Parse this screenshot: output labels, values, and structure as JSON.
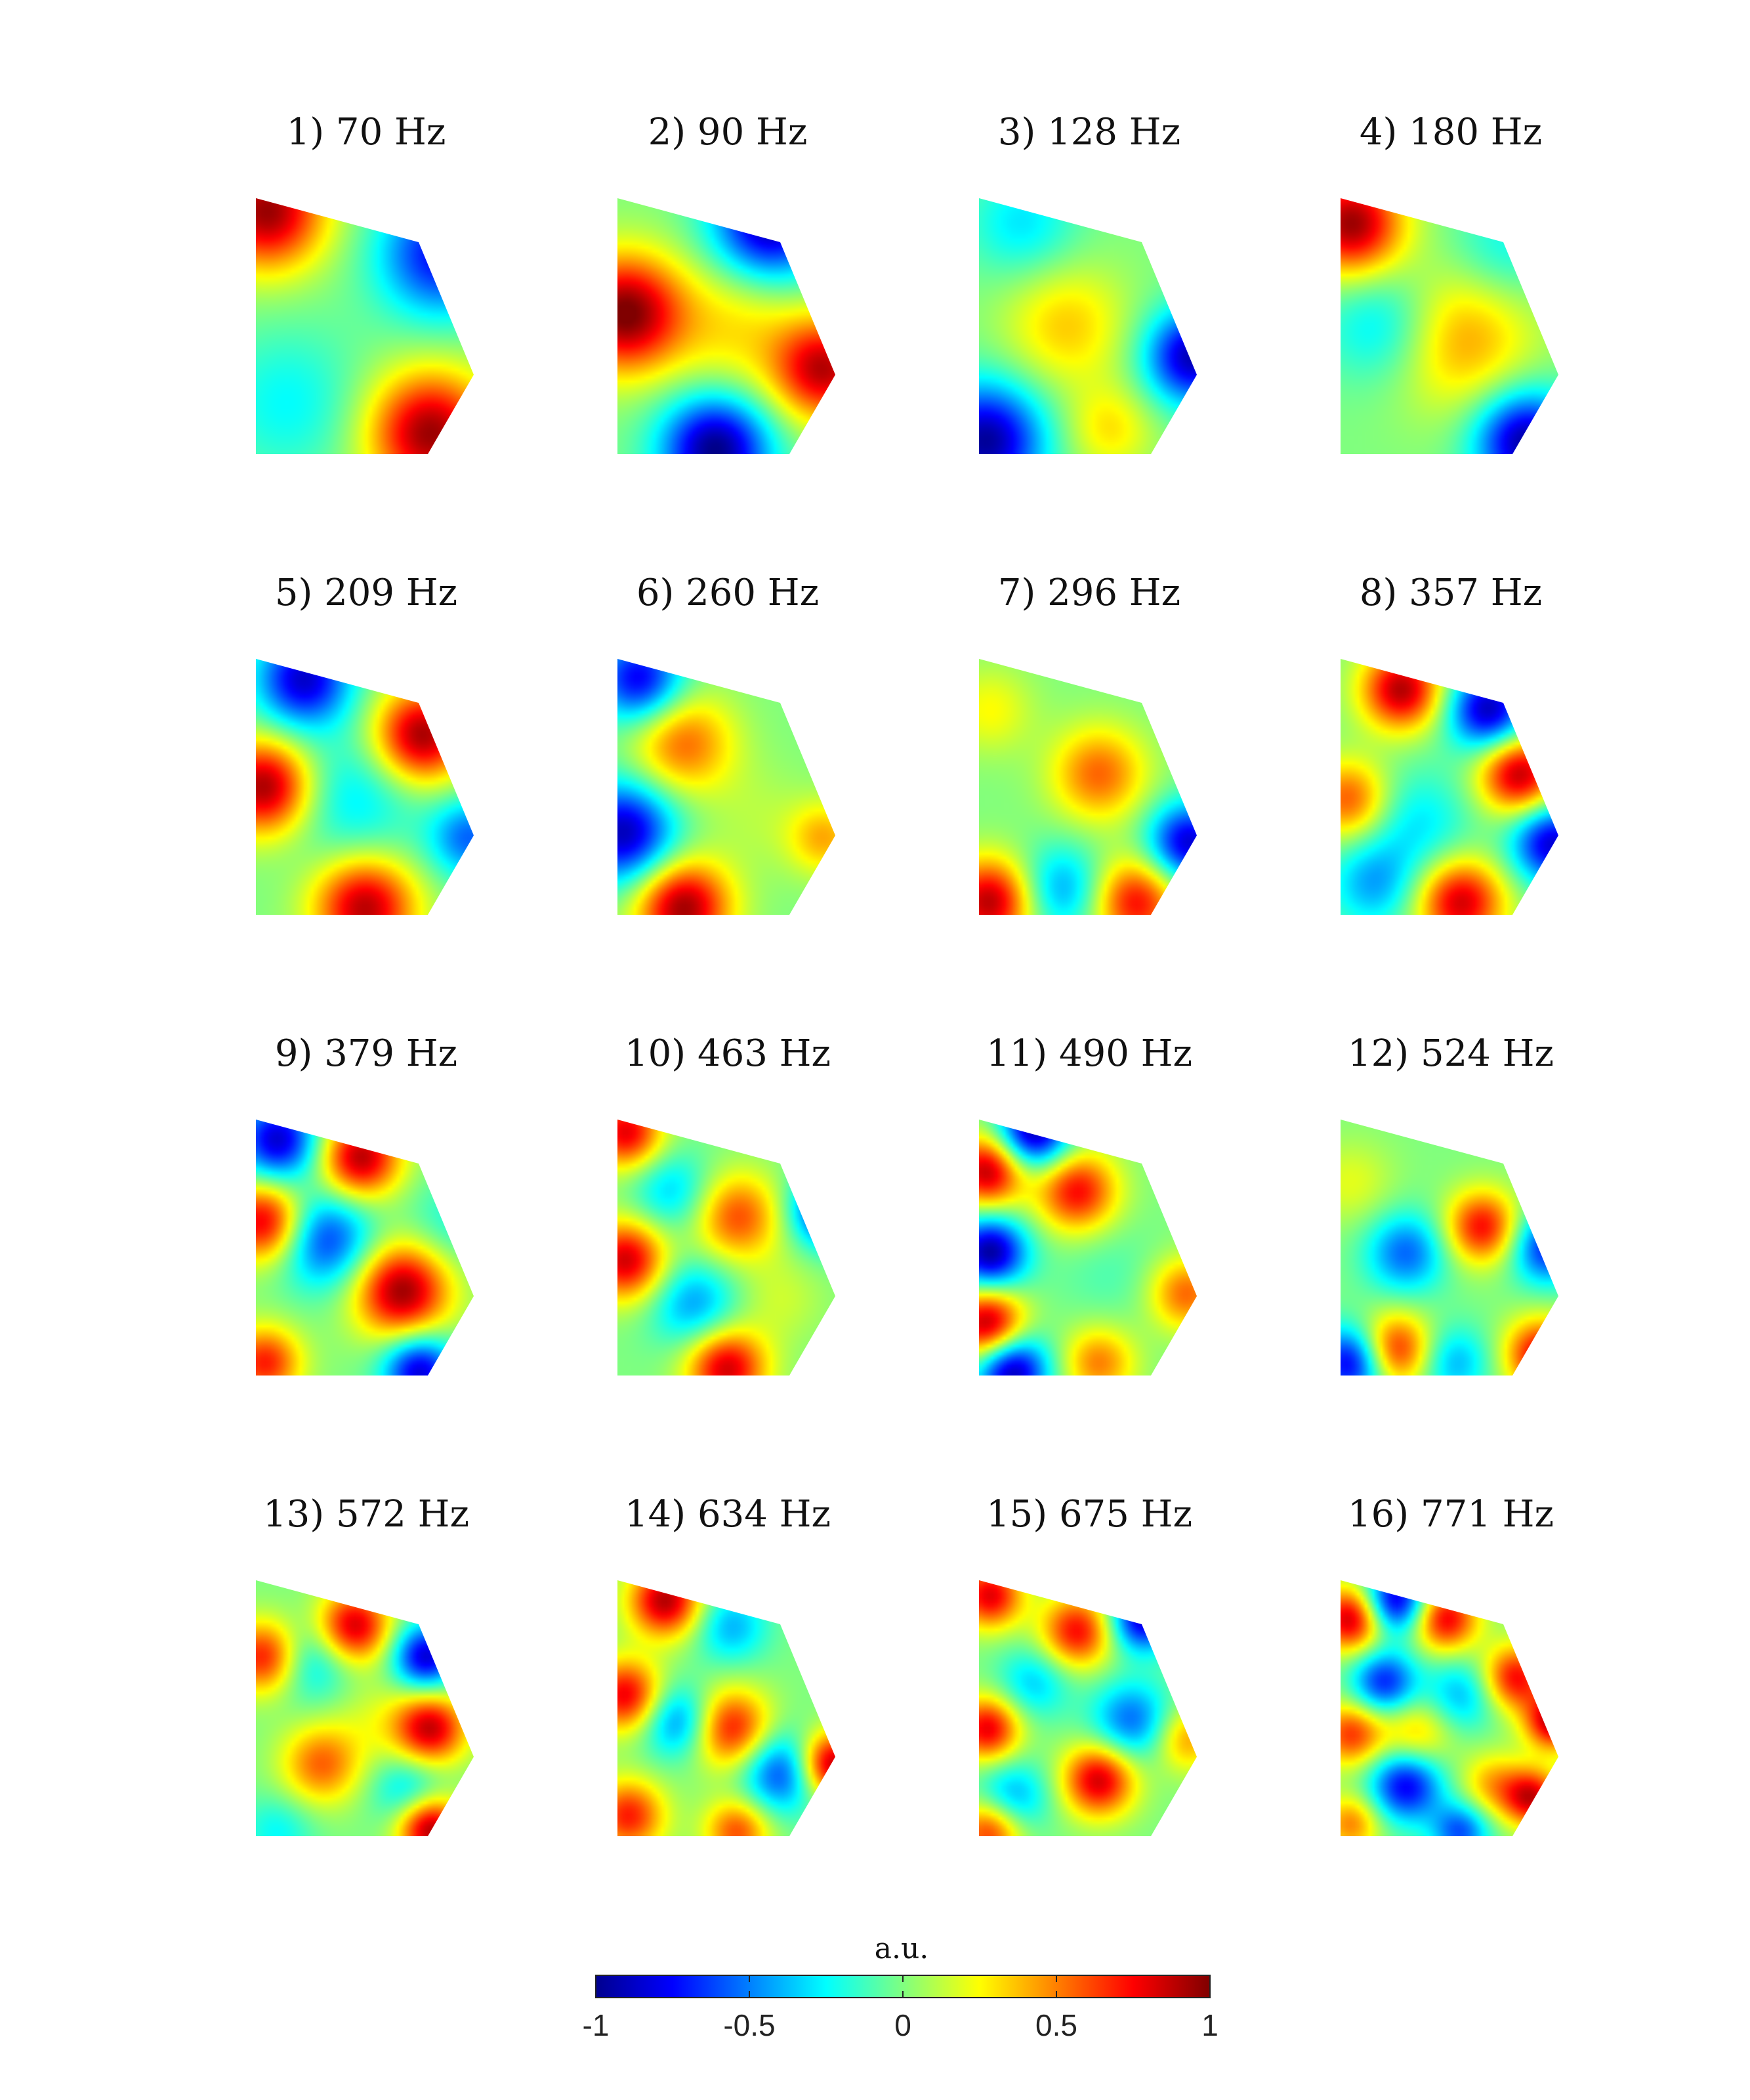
{
  "chart_data": {
    "type": "heatmap",
    "panels": [
      {
        "title": "1) 70 Hz",
        "freq_hz": 70,
        "blobs": [
          [
            0.05,
            0.05,
            0.95,
            0.16
          ],
          [
            0.8,
            0.92,
            0.95,
            0.17
          ],
          [
            0.85,
            0.22,
            -0.75,
            0.17
          ],
          [
            0.15,
            0.8,
            -0.25,
            0.2
          ]
        ]
      },
      {
        "title": "2) 90 Hz",
        "freq_hz": 90,
        "blobs": [
          [
            0.03,
            0.45,
            1.0,
            0.16
          ],
          [
            0.95,
            0.67,
            0.85,
            0.14
          ],
          [
            0.7,
            0.1,
            -0.95,
            0.16
          ],
          [
            0.45,
            0.98,
            -1.0,
            0.15
          ],
          [
            0.55,
            0.5,
            0.3,
            0.2
          ]
        ]
      },
      {
        "title": "3) 128 Hz",
        "freq_hz": 128,
        "blobs": [
          [
            0.4,
            0.5,
            0.35,
            0.17
          ],
          [
            0.03,
            0.95,
            -0.95,
            0.16
          ],
          [
            0.98,
            0.62,
            -0.9,
            0.13
          ],
          [
            0.2,
            0.1,
            -0.3,
            0.15
          ],
          [
            0.6,
            0.9,
            0.3,
            0.12
          ]
        ]
      },
      {
        "title": "4) 180 Hz",
        "freq_hz": 180,
        "blobs": [
          [
            0.05,
            0.1,
            0.95,
            0.14
          ],
          [
            0.55,
            0.55,
            0.45,
            0.2
          ],
          [
            0.85,
            0.95,
            -0.95,
            0.14
          ],
          [
            0.2,
            0.5,
            -0.35,
            0.16
          ],
          [
            0.75,
            0.2,
            -0.25,
            0.15
          ]
        ]
      },
      {
        "title": "5) 209 Hz",
        "freq_hz": 209,
        "blobs": [
          [
            0.04,
            0.5,
            0.95,
            0.13
          ],
          [
            0.76,
            0.3,
            0.95,
            0.13
          ],
          [
            0.5,
            0.97,
            0.9,
            0.14
          ],
          [
            0.22,
            0.08,
            -0.85,
            0.13
          ],
          [
            0.98,
            0.7,
            -0.55,
            0.11
          ],
          [
            0.45,
            0.55,
            -0.3,
            0.18
          ]
        ]
      },
      {
        "title": "6) 260 Hz",
        "freq_hz": 260,
        "blobs": [
          [
            0.3,
            0.33,
            0.55,
            0.14
          ],
          [
            0.03,
            0.68,
            -0.9,
            0.14
          ],
          [
            0.3,
            0.97,
            0.95,
            0.13
          ],
          [
            0.1,
            0.08,
            -0.8,
            0.12
          ],
          [
            0.95,
            0.7,
            0.4,
            0.1
          ],
          [
            0.65,
            0.62,
            0.1,
            0.15
          ]
        ]
      },
      {
        "title": "7) 296 Hz",
        "freq_hz": 296,
        "blobs": [
          [
            0.55,
            0.45,
            0.55,
            0.13
          ],
          [
            0.05,
            0.95,
            0.9,
            0.12
          ],
          [
            0.38,
            0.9,
            -0.45,
            0.12
          ],
          [
            0.72,
            0.95,
            0.75,
            0.12
          ],
          [
            0.96,
            0.72,
            -0.85,
            0.11
          ],
          [
            0.05,
            0.2,
            0.25,
            0.12
          ]
        ]
      },
      {
        "title": "8) 357 Hz",
        "freq_hz": 357,
        "blobs": [
          [
            0.28,
            0.12,
            0.9,
            0.11
          ],
          [
            0.68,
            0.2,
            -0.9,
            0.11
          ],
          [
            0.82,
            0.45,
            0.9,
            0.11
          ],
          [
            0.97,
            0.72,
            -0.85,
            0.11
          ],
          [
            0.55,
            0.95,
            0.85,
            0.12
          ],
          [
            0.15,
            0.88,
            -0.4,
            0.12
          ],
          [
            0.04,
            0.55,
            0.6,
            0.11
          ],
          [
            0.35,
            0.65,
            -0.3,
            0.15
          ]
        ]
      },
      {
        "title": "9) 379 Hz",
        "freq_hz": 379,
        "blobs": [
          [
            0.1,
            0.08,
            -0.85,
            0.11
          ],
          [
            0.48,
            0.15,
            0.9,
            0.11
          ],
          [
            0.04,
            0.4,
            0.85,
            0.11
          ],
          [
            0.32,
            0.47,
            -0.65,
            0.13
          ],
          [
            0.67,
            0.67,
            0.95,
            0.13
          ],
          [
            0.75,
            0.98,
            -0.85,
            0.1
          ],
          [
            0.04,
            0.95,
            0.7,
            0.1
          ],
          [
            0.9,
            0.4,
            -0.2,
            0.12
          ]
        ]
      },
      {
        "title": "10) 463 Hz",
        "freq_hz": 463,
        "blobs": [
          [
            0.04,
            0.05,
            0.8,
            0.1
          ],
          [
            0.25,
            0.28,
            -0.35,
            0.11
          ],
          [
            0.55,
            0.38,
            0.6,
            0.12
          ],
          [
            0.97,
            0.35,
            -0.85,
            0.1
          ],
          [
            0.04,
            0.55,
            0.85,
            0.11
          ],
          [
            0.35,
            0.72,
            -0.45,
            0.12
          ],
          [
            0.5,
            0.97,
            0.85,
            0.11
          ],
          [
            0.75,
            0.7,
            0.15,
            0.12
          ]
        ]
      },
      {
        "title": "11) 490 Hz",
        "freq_hz": 490,
        "blobs": [
          [
            0.04,
            0.2,
            0.9,
            0.1
          ],
          [
            0.25,
            0.05,
            -0.95,
            0.1
          ],
          [
            0.45,
            0.28,
            0.75,
            0.11
          ],
          [
            0.05,
            0.52,
            -0.95,
            0.1
          ],
          [
            0.04,
            0.8,
            0.95,
            0.1
          ],
          [
            0.15,
            0.98,
            -0.95,
            0.1
          ],
          [
            0.55,
            0.95,
            0.5,
            0.1
          ],
          [
            0.95,
            0.68,
            0.55,
            0.1
          ],
          [
            0.6,
            0.6,
            -0.1,
            0.14
          ]
        ]
      },
      {
        "title": "12) 524 Hz",
        "freq_hz": 524,
        "blobs": [
          [
            0.3,
            0.52,
            -0.55,
            0.11
          ],
          [
            0.65,
            0.42,
            0.75,
            0.1
          ],
          [
            0.95,
            0.5,
            -0.7,
            0.1
          ],
          [
            0.25,
            0.9,
            0.75,
            0.1
          ],
          [
            0.05,
            0.95,
            -0.85,
            0.1
          ],
          [
            0.52,
            0.95,
            -0.4,
            0.1
          ],
          [
            0.92,
            0.92,
            0.8,
            0.1
          ],
          [
            0.05,
            0.25,
            0.2,
            0.12
          ]
        ]
      },
      {
        "title": "13) 572 Hz",
        "freq_hz": 572,
        "blobs": [
          [
            0.04,
            0.3,
            0.75,
            0.1
          ],
          [
            0.45,
            0.18,
            0.85,
            0.1
          ],
          [
            0.78,
            0.3,
            -0.85,
            0.09
          ],
          [
            0.25,
            0.32,
            -0.35,
            0.11
          ],
          [
            0.8,
            0.58,
            0.85,
            0.1
          ],
          [
            0.3,
            0.72,
            0.55,
            0.11
          ],
          [
            0.1,
            0.98,
            -0.25,
            0.1
          ],
          [
            0.7,
            0.82,
            -0.35,
            0.1
          ],
          [
            0.8,
            0.97,
            0.95,
            0.09
          ],
          [
            0.55,
            0.55,
            0.15,
            0.12
          ]
        ]
      },
      {
        "title": "14) 634 Hz",
        "freq_hz": 634,
        "blobs": [
          [
            0.22,
            0.08,
            0.9,
            0.1
          ],
          [
            0.52,
            0.18,
            -0.4,
            0.1
          ],
          [
            0.04,
            0.45,
            0.8,
            0.1
          ],
          [
            0.28,
            0.55,
            -0.55,
            0.1
          ],
          [
            0.52,
            0.58,
            0.75,
            0.11
          ],
          [
            0.75,
            0.75,
            -0.65,
            0.11
          ],
          [
            0.98,
            0.72,
            0.95,
            0.09
          ],
          [
            0.05,
            0.92,
            0.7,
            0.1
          ],
          [
            0.55,
            0.98,
            0.6,
            0.09
          ]
        ]
      },
      {
        "title": "15) 675 Hz",
        "freq_hz": 675,
        "blobs": [
          [
            0.05,
            0.06,
            0.8,
            0.09
          ],
          [
            0.45,
            0.2,
            0.75,
            0.1
          ],
          [
            0.75,
            0.15,
            -0.85,
            0.09
          ],
          [
            0.25,
            0.4,
            -0.35,
            0.1
          ],
          [
            0.04,
            0.58,
            0.8,
            0.09
          ],
          [
            0.7,
            0.55,
            -0.55,
            0.11
          ],
          [
            0.55,
            0.78,
            0.85,
            0.1
          ],
          [
            0.95,
            0.62,
            0.45,
            0.09
          ],
          [
            0.15,
            0.85,
            -0.45,
            0.1
          ],
          [
            0.05,
            0.98,
            0.7,
            0.09
          ]
        ]
      },
      {
        "title": "16) 771 Hz",
        "freq_hz": 771,
        "blobs": [
          [
            0.05,
            0.15,
            0.9,
            0.09
          ],
          [
            0.25,
            0.08,
            -0.9,
            0.09
          ],
          [
            0.48,
            0.15,
            0.8,
            0.09
          ],
          [
            0.2,
            0.4,
            -0.7,
            0.09
          ],
          [
            0.55,
            0.45,
            -0.4,
            0.1
          ],
          [
            0.8,
            0.38,
            0.75,
            0.09
          ],
          [
            0.98,
            0.55,
            0.9,
            0.08
          ],
          [
            0.05,
            0.6,
            0.65,
            0.09
          ],
          [
            0.35,
            0.6,
            0.4,
            0.1
          ],
          [
            0.3,
            0.8,
            -0.8,
            0.1
          ],
          [
            0.7,
            0.8,
            0.4,
            0.09
          ],
          [
            0.05,
            0.95,
            0.5,
            0.08
          ],
          [
            0.55,
            0.98,
            -0.6,
            0.08
          ],
          [
            0.88,
            0.85,
            0.8,
            0.08
          ]
        ]
      }
    ],
    "colorbar": {
      "label": "a.u.",
      "colormap": "jet",
      "range": [
        -1,
        1
      ],
      "ticks": [
        -1,
        -0.5,
        0,
        0.5,
        1
      ],
      "tick_labels": [
        "-1",
        "-0.5",
        "0",
        "0.5",
        "1"
      ]
    }
  }
}
